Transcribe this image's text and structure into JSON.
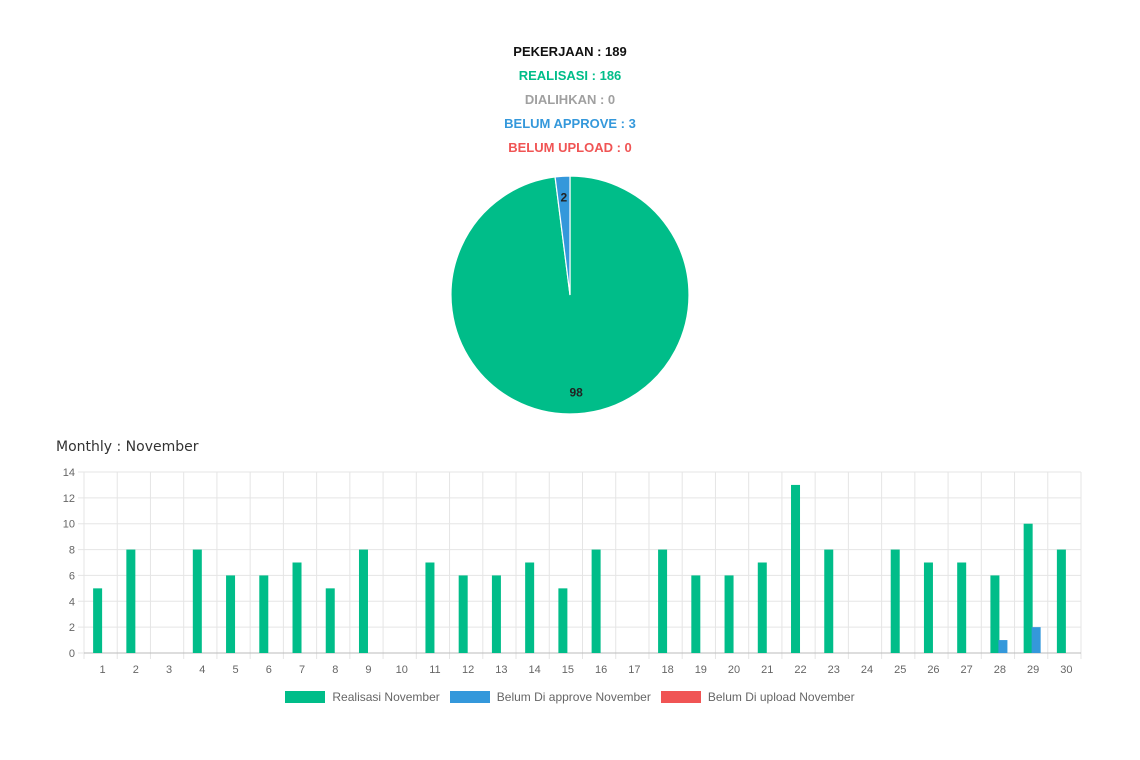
{
  "summary": {
    "pekerjaan": "PEKERJAAN : 189",
    "realisasi": "REALISASI : 186",
    "dialihkan": "DIALIHKAN : 0",
    "belum_approve": "BELUM APPROVE : 3",
    "belum_upload": "BELUM UPLOAD : 0"
  },
  "colors": {
    "dark": "#111111",
    "green": "#00bd89",
    "gray": "#a0a0a0",
    "blue": "#3498db",
    "red": "#f05454",
    "grid": "#e5e5e5",
    "axis_text": "#666666"
  },
  "monthly_title": "Monthly : November",
  "chart_data": [
    {
      "type": "pie",
      "slices": [
        {
          "label": "98",
          "value": 98,
          "color": "#00bd89"
        },
        {
          "label": "2",
          "value": 2,
          "color": "#3498db"
        }
      ]
    },
    {
      "type": "bar",
      "categories": [
        "1",
        "2",
        "3",
        "4",
        "5",
        "6",
        "7",
        "8",
        "9",
        "10",
        "11",
        "12",
        "13",
        "14",
        "15",
        "16",
        "17",
        "18",
        "19",
        "20",
        "21",
        "22",
        "23",
        "24",
        "25",
        "26",
        "27",
        "28",
        "29",
        "30"
      ],
      "series": [
        {
          "name": "Realisasi November",
          "color": "#00bd89",
          "values": [
            5,
            8,
            0,
            8,
            6,
            6,
            7,
            5,
            8,
            0,
            7,
            6,
            6,
            7,
            5,
            8,
            0,
            8,
            6,
            6,
            7,
            13,
            8,
            0,
            8,
            7,
            7,
            6,
            10,
            8
          ]
        },
        {
          "name": "Belum Di approve November",
          "color": "#3498db",
          "values": [
            0,
            0,
            0,
            0,
            0,
            0,
            0,
            0,
            0,
            0,
            0,
            0,
            0,
            0,
            0,
            0,
            0,
            0,
            0,
            0,
            0,
            0,
            0,
            0,
            0,
            0,
            0,
            1,
            2,
            0
          ]
        },
        {
          "name": "Belum Di upload November",
          "color": "#f05454",
          "values": [
            0,
            0,
            0,
            0,
            0,
            0,
            0,
            0,
            0,
            0,
            0,
            0,
            0,
            0,
            0,
            0,
            0,
            0,
            0,
            0,
            0,
            0,
            0,
            0,
            0,
            0,
            0,
            0,
            0,
            0
          ]
        }
      ],
      "y_ticks": [
        "0",
        "2",
        "4",
        "6",
        "8",
        "10",
        "12",
        "14"
      ],
      "ylim": [
        0,
        14
      ],
      "grid": true,
      "legend_position": "bottom"
    }
  ]
}
